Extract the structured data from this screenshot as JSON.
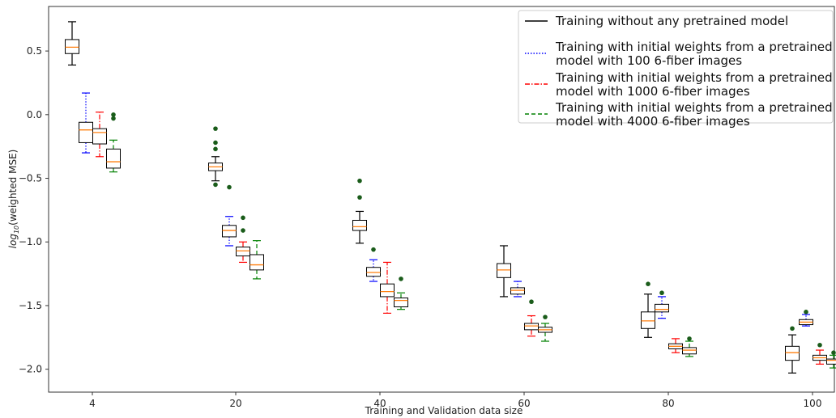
{
  "chart_data": {
    "type": "box",
    "xlabel": "Training and Validation data size",
    "ylabel_base": "log",
    "ylabel_sub": "10",
    "ylabel_rest": "(weighted MSE)",
    "categories": [
      "4",
      "20",
      "40",
      "60",
      "80",
      "100"
    ],
    "ylim": [
      -2.18,
      0.85
    ],
    "yticks": [
      0.5,
      0.0,
      -0.5,
      -1.0,
      -1.5,
      -2.0
    ],
    "ytick_labels": [
      "0.5",
      "0.0",
      "−0.5",
      "−1.0",
      "−1.5",
      "−2.0"
    ],
    "grid": false,
    "legend_position": "top-right",
    "median_color": "#ff7f0e",
    "outlier_color": "#1a5c1a",
    "series": [
      {
        "name": "Training without any pretrained model",
        "color": "#000000",
        "dash": "solid",
        "boxes": [
          {
            "min": 0.39,
            "q1": 0.48,
            "median": 0.53,
            "q3": 0.59,
            "max": 0.73,
            "outliers": []
          },
          {
            "min": -0.52,
            "q1": -0.44,
            "median": -0.41,
            "q3": -0.38,
            "max": -0.33,
            "outliers": [
              -0.11,
              -0.22,
              -0.27,
              -0.55
            ]
          },
          {
            "min": -1.01,
            "q1": -0.91,
            "median": -0.88,
            "q3": -0.83,
            "max": -0.76,
            "outliers": [
              -0.52,
              -0.65
            ]
          },
          {
            "min": -1.43,
            "q1": -1.28,
            "median": -1.22,
            "q3": -1.17,
            "max": -1.03,
            "outliers": []
          },
          {
            "min": -1.75,
            "q1": -1.68,
            "median": -1.62,
            "q3": -1.55,
            "max": -1.41,
            "outliers": [
              -1.33
            ]
          },
          {
            "min": -2.03,
            "q1": -1.93,
            "median": -1.87,
            "q3": -1.82,
            "max": -1.73,
            "outliers": [
              -1.68
            ]
          }
        ]
      },
      {
        "name": "Training with initial weights from a pretrained model with 100 6-fiber images",
        "color": "#0000ff",
        "dash": "dotted",
        "boxes": [
          {
            "min": -0.3,
            "q1": -0.22,
            "median": -0.12,
            "q3": -0.06,
            "max": 0.17,
            "outliers": []
          },
          {
            "min": -1.03,
            "q1": -0.96,
            "median": -0.91,
            "q3": -0.87,
            "max": -0.8,
            "outliers": [
              -0.57
            ]
          },
          {
            "min": -1.31,
            "q1": -1.27,
            "median": -1.24,
            "q3": -1.2,
            "max": -1.14,
            "outliers": [
              -1.06
            ]
          },
          {
            "min": -1.43,
            "q1": -1.41,
            "median": -1.38,
            "q3": -1.36,
            "max": -1.31,
            "outliers": []
          },
          {
            "min": -1.6,
            "q1": -1.55,
            "median": -1.53,
            "q3": -1.49,
            "max": -1.43,
            "outliers": [
              -1.4
            ]
          },
          {
            "min": -1.66,
            "q1": -1.65,
            "median": -1.63,
            "q3": -1.61,
            "max": -1.57,
            "outliers": [
              -1.55
            ]
          }
        ]
      },
      {
        "name": "Training with initial weights from a pretrained model with 1000 6-fiber images",
        "color": "#ff0000",
        "dash": "dashdot",
        "boxes": [
          {
            "min": -0.33,
            "q1": -0.23,
            "median": -0.14,
            "q3": -0.11,
            "max": 0.02,
            "outliers": []
          },
          {
            "min": -1.16,
            "q1": -1.11,
            "median": -1.07,
            "q3": -1.04,
            "max": -1.0,
            "outliers": [
              -0.81,
              -0.91
            ]
          },
          {
            "min": -1.56,
            "q1": -1.43,
            "median": -1.39,
            "q3": -1.33,
            "max": -1.16,
            "outliers": []
          },
          {
            "min": -1.74,
            "q1": -1.69,
            "median": -1.66,
            "q3": -1.64,
            "max": -1.58,
            "outliers": [
              -1.47
            ]
          },
          {
            "min": -1.87,
            "q1": -1.84,
            "median": -1.82,
            "q3": -1.8,
            "max": -1.76,
            "outliers": []
          },
          {
            "min": -1.96,
            "q1": -1.93,
            "median": -1.91,
            "q3": -1.89,
            "max": -1.85,
            "outliers": [
              -1.81
            ]
          }
        ]
      },
      {
        "name": "Training with initial weights from a pretrained model with 4000 6-fiber images",
        "color": "#008000",
        "dash": "dashed",
        "boxes": [
          {
            "min": -0.45,
            "q1": -0.42,
            "median": -0.37,
            "q3": -0.27,
            "max": -0.2,
            "outliers": [
              0.0,
              -0.03
            ]
          },
          {
            "min": -1.29,
            "q1": -1.22,
            "median": -1.18,
            "q3": -1.1,
            "max": -0.99,
            "outliers": []
          },
          {
            "min": -1.53,
            "q1": -1.51,
            "median": -1.46,
            "q3": -1.44,
            "max": -1.4,
            "outliers": [
              -1.29
            ]
          },
          {
            "min": -1.78,
            "q1": -1.71,
            "median": -1.69,
            "q3": -1.67,
            "max": -1.64,
            "outliers": [
              -1.59
            ]
          },
          {
            "min": -1.9,
            "q1": -1.88,
            "median": -1.85,
            "q3": -1.83,
            "max": -1.78,
            "outliers": [
              -1.76
            ]
          },
          {
            "min": -1.99,
            "q1": -1.96,
            "median": -1.93,
            "q3": -1.92,
            "max": -1.89,
            "outliers": [
              -1.87
            ]
          }
        ]
      }
    ],
    "legend_lines": [
      [
        "Training without any pretrained model"
      ],
      [
        "Training with initial weights from a pretrained",
        "model with 100 6-fiber images"
      ],
      [
        "Training with initial weights from a pretrained",
        "model with 1000 6-fiber images"
      ],
      [
        "Training with initial weights from a pretrained",
        "model with 4000 6-fiber images"
      ]
    ]
  }
}
